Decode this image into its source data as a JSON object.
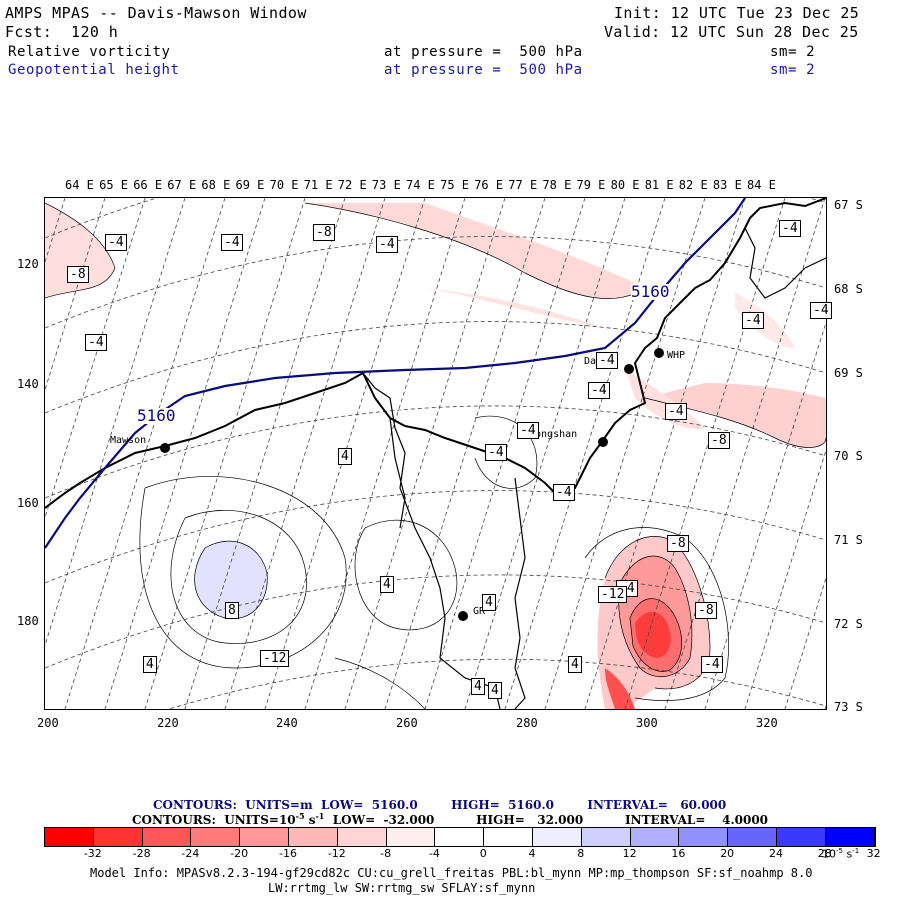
{
  "header": {
    "title": "AMPS MPAS -- Davis-Mawson Window",
    "fcst": "Fcst:  120 h",
    "init": "Init: 12 UTC Tue 23 Dec 25",
    "valid": "Valid: 12 UTC Sun 28 Dec 25",
    "field1": {
      "name": "Relative vorticity",
      "level": "at pressure =  500 hPa",
      "sm": "sm= 2"
    },
    "field2": {
      "name": "Geopotential height",
      "level": "at pressure =  500 hPa",
      "sm": "sm= 2"
    }
  },
  "map": {
    "lon_labels": [
      "64 E",
      "65 E",
      "66 E",
      "67 E",
      "68 E",
      "69 E",
      "70 E",
      "71 E",
      "72 E",
      "73 E",
      "74 E",
      "75 E",
      "76 E",
      "77 E",
      "78 E",
      "79 E",
      "80 E",
      "81 E",
      "82 E",
      "83 E",
      "84 E"
    ],
    "lat_labels": [
      "67 S",
      "68 S",
      "69 S",
      "70 S",
      "71 S",
      "72 S",
      "73 S"
    ],
    "x_ticks": [
      "200",
      "220",
      "240",
      "260",
      "280",
      "300",
      "320"
    ],
    "y_ticks": [
      "120",
      "140",
      "160",
      "180"
    ],
    "stations": [
      {
        "name": "Mawson"
      },
      {
        "name": "Davis"
      },
      {
        "name": "WHP"
      },
      {
        "name": "Zhongshan"
      },
      {
        "name": "GR"
      }
    ],
    "height_labels": [
      "5160",
      "5160"
    ],
    "vort_labels": [
      "-4",
      "-4",
      "-8",
      "-4",
      "-8",
      "-4",
      "-4",
      "-4",
      "-4",
      "-4",
      "-4",
      "-8",
      "-4",
      "-4",
      "4",
      "-4",
      "4",
      "4",
      "-4",
      "4",
      "4",
      "-12",
      "-8",
      "-8",
      "-12",
      "-4",
      "4",
      "4",
      "-4",
      "8"
    ]
  },
  "legend": {
    "line1": "CONTOURS:  UNITS=m  LOW=  5160.0        HIGH=  5160.0        INTERVAL=   60.000",
    "line2_pre": "CONTOURS:  UNITS=10",
    "line2_exp": "-5",
    "line2_post": " s",
    "line2_exp2": "-1",
    "line2_rest": "  LOW=  -32.000          HIGH=   32.000          INTERVAL=    4.0000",
    "colors": [
      "#ff0000",
      "#ff3333",
      "#ff5757",
      "#ff7a7a",
      "#ff9999",
      "#ffb8b8",
      "#ffd5d5",
      "#ffeeee",
      "#ffffff",
      "#ffffff",
      "#eeeeff",
      "#d0d0ff",
      "#b0b0ff",
      "#9090ff",
      "#6666ff",
      "#3a3aff",
      "#0000ff"
    ],
    "ticks": [
      "-32",
      "-28",
      "-24",
      "-20",
      "-16",
      "-12",
      "-8",
      "-4",
      "0",
      "4",
      "8",
      "12",
      "16",
      "20",
      "24",
      "28",
      "32"
    ],
    "unit_base": "10",
    "unit_exp": "-5",
    "unit_s": " s",
    "unit_exp2": "-1"
  },
  "footer": {
    "line1": "Model Info: MPASv8.2.3-194-gf29cd82c CU:cu_grell_freitas PBL:bl_mynn MP:mp_thompson SF:sf_noahmp 8.0",
    "line2": "LW:rrtmg_lw SW:rrtmg_sw SFLAY:sf_mynn"
  }
}
